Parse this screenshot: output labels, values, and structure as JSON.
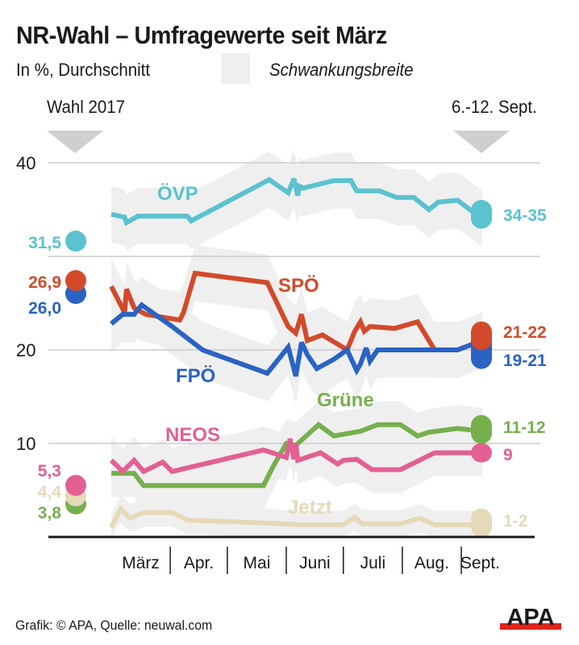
{
  "header": {
    "title": "NR-Wahl – Umfragewerte seit März",
    "subtitle": "In %, Durchschnitt",
    "legend_band_label": "Schwankungsbreite"
  },
  "markers": {
    "left": "Wahl 2017",
    "right": "6.-12. Sept."
  },
  "footer": {
    "credit": "Grafik: © APA, Quelle: neuwal.com",
    "logo": "APA"
  },
  "colors": {
    "band": "#efefef",
    "grid": "#cccccc",
    "axis": "#1a1a1a",
    "marker": "#cfcfcf",
    "logo_red": "#e2231a"
  },
  "chart_data": {
    "type": "line",
    "title": "NR-Wahl – Umfragewerte seit März",
    "subtitle": "In %, Durchschnitt",
    "xlabel": "",
    "ylabel": "",
    "ylim": [
      0,
      40
    ],
    "yticks": [
      10,
      20,
      40
    ],
    "grid": true,
    "x_unit": "days since 1 March",
    "xlim": [
      0,
      195
    ],
    "month_ticks": [
      {
        "label": "März",
        "start": 0,
        "end": 31
      },
      {
        "label": "Apr.",
        "start": 31,
        "end": 61
      },
      {
        "label": "Mai",
        "start": 61,
        "end": 92
      },
      {
        "label": "Juni",
        "start": 92,
        "end": 122
      },
      {
        "label": "Juli",
        "start": 122,
        "end": 153
      },
      {
        "label": "Aug.",
        "start": 153,
        "end": 184
      },
      {
        "label": "Sept.",
        "start": 184,
        "end": 214
      }
    ],
    "series": [
      {
        "name": "ÖVP",
        "color": "#5bc2cf",
        "election_2017": 31.5,
        "election_label": "31,5",
        "latest_range": [
          34,
          35
        ],
        "latest_label": "34-35",
        "band_width": 3.0,
        "x": [
          0,
          7,
          8,
          14,
          40,
          42,
          83,
          93,
          96,
          98,
          99,
          101,
          117,
          126,
          129,
          141,
          150,
          159,
          167,
          172,
          182,
          195
        ],
        "values": [
          34.5,
          34.2,
          33.6,
          34.3,
          34.3,
          33.8,
          38.2,
          36.8,
          38.3,
          36.5,
          37.5,
          37.3,
          38.1,
          38.1,
          37.0,
          37.0,
          36.3,
          36.3,
          35.0,
          35.8,
          36.0,
          34.0
        ]
      },
      {
        "name": "SPÖ",
        "color": "#d24a2b",
        "election_2017": 26.9,
        "election_label": "26,9",
        "latest_range": [
          21,
          22
        ],
        "latest_label": "21-22",
        "band_width": 3.0,
        "x": [
          0,
          7,
          8,
          12,
          18,
          36,
          38,
          44,
          82,
          93,
          97,
          100,
          103,
          111,
          124,
          128,
          131,
          133,
          136,
          149,
          161,
          170,
          182,
          195
        ],
        "values": [
          26.8,
          24.0,
          26.5,
          24.5,
          23.8,
          23.2,
          24.0,
          28.2,
          27.2,
          22.5,
          21.8,
          23.8,
          21.0,
          21.6,
          20.0,
          22.0,
          23.0,
          22.0,
          22.5,
          22.3,
          23.0,
          20.0,
          20.0,
          21.0
        ]
      },
      {
        "name": "FPÖ",
        "color": "#2a63c4",
        "election_2017": 26.0,
        "election_label": "26,0",
        "latest_range": [
          19,
          21
        ],
        "latest_label": "19-21",
        "band_width": 3.0,
        "x": [
          0,
          6,
          12,
          16,
          32,
          48,
          82,
          93,
          97,
          100,
          103,
          108,
          117,
          124,
          129,
          131,
          134,
          136,
          140,
          149,
          170,
          182,
          195
        ],
        "values": [
          22.8,
          23.8,
          23.8,
          24.8,
          22.5,
          20.0,
          17.5,
          20.3,
          17.2,
          20.8,
          19.5,
          18.0,
          19.0,
          20.0,
          17.8,
          18.5,
          20.2,
          18.8,
          20.0,
          20.0,
          20.0,
          20.0,
          21.0
        ]
      },
      {
        "name": "Grüne",
        "color": "#76b04d",
        "election_2017": 3.8,
        "election_label": "3,8",
        "latest_range": [
          11,
          12
        ],
        "latest_label": "11-12",
        "band_width": 2.5,
        "x": [
          0,
          12,
          17,
          80,
          85,
          92,
          97,
          109,
          117,
          131,
          140,
          152,
          161,
          167,
          182,
          195
        ],
        "values": [
          6.8,
          6.8,
          5.5,
          5.5,
          7.5,
          10.0,
          9.8,
          12.0,
          10.8,
          11.3,
          12.0,
          12.0,
          10.8,
          11.2,
          11.6,
          11.3
        ]
      },
      {
        "name": "NEOS",
        "color": "#e26094",
        "election_2017": 5.3,
        "election_label": "5,3",
        "latest_range": [
          9,
          9
        ],
        "latest_label": "9",
        "band_width": 2.5,
        "x": [
          0,
          6,
          12,
          17,
          27,
          32,
          80,
          92,
          94,
          96,
          97,
          98,
          110,
          119,
          122,
          129,
          137,
          140,
          152,
          170,
          182,
          195
        ],
        "values": [
          8.2,
          7.0,
          8.2,
          7.0,
          8.0,
          7.0,
          9.3,
          8.5,
          10.5,
          8.3,
          10.0,
          8.2,
          9.0,
          7.8,
          8.2,
          8.3,
          7.2,
          7.2,
          7.2,
          9.0,
          9.0,
          9.0
        ]
      },
      {
        "name": "Jetzt",
        "color": "#e5d9b8",
        "election_2017": 4.4,
        "election_label": "4,4",
        "latest_range": [
          1,
          2
        ],
        "latest_label": "1-2",
        "band_width": 1.5,
        "x": [
          0,
          5,
          10,
          17,
          32,
          40,
          80,
          100,
          122,
          128,
          132,
          152,
          162,
          170,
          195
        ],
        "values": [
          1.0,
          3.0,
          2.0,
          2.6,
          2.6,
          1.8,
          1.5,
          1.3,
          1.3,
          2.1,
          1.4,
          1.4,
          2.0,
          1.3,
          1.3
        ]
      }
    ],
    "line_labels": {
      "ÖVP": "ÖVP",
      "SPÖ": "SPÖ",
      "FPÖ": "FPÖ",
      "Grüne": "Grüne",
      "NEOS": "NEOS",
      "Jetzt": "Jetzt"
    },
    "legend": "top"
  }
}
